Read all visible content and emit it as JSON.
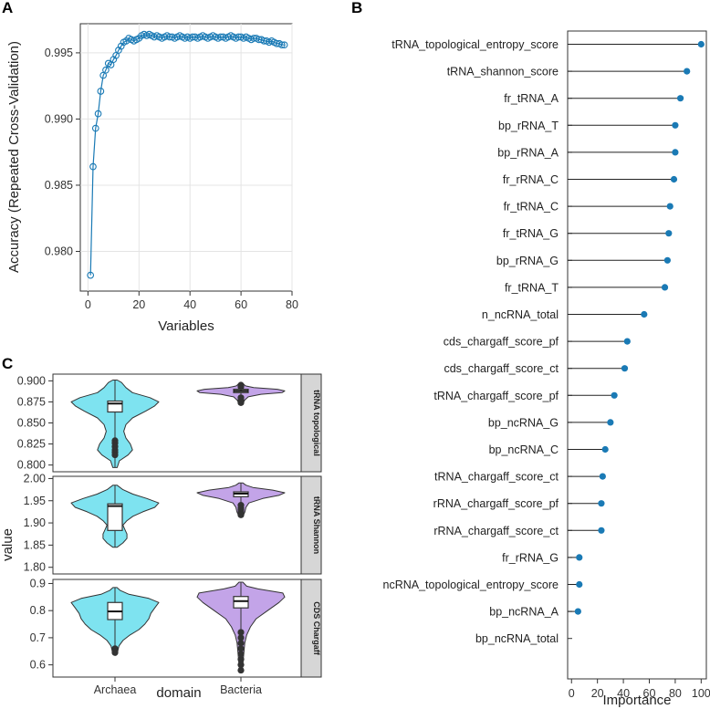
{
  "panels": {
    "a": "A",
    "b": "B",
    "c": "C"
  },
  "colors": {
    "line": "#1a7ab5",
    "archaea": "#7ee3f0",
    "bacteria": "#c3a4e8",
    "strip": "#d6d6d6",
    "grid": "#e4e4e4"
  },
  "chart_data": [
    {
      "type": "line",
      "xlabel": "Variables",
      "ylabel": "Accuracy (Repeated Cross-Validation)",
      "xlim": [
        -3,
        80
      ],
      "ylim": [
        0.977,
        0.9972
      ],
      "xticks": [
        0,
        20,
        40,
        60,
        80
      ],
      "yticks": [
        0.98,
        0.985,
        0.99,
        0.995
      ],
      "ytick_labels": [
        "0.980",
        "0.985",
        "0.990",
        "0.995"
      ],
      "x": [
        1,
        2,
        3,
        4,
        5,
        6,
        7,
        8,
        9,
        10,
        11,
        12,
        13,
        14,
        15,
        16,
        17,
        18,
        19,
        20,
        21,
        22,
        23,
        24,
        25,
        26,
        27,
        28,
        29,
        30,
        31,
        32,
        33,
        34,
        35,
        36,
        37,
        38,
        39,
        40,
        41,
        42,
        43,
        44,
        45,
        46,
        47,
        48,
        49,
        50,
        51,
        52,
        53,
        54,
        55,
        56,
        57,
        58,
        59,
        60,
        61,
        62,
        63,
        64,
        65,
        66,
        67,
        68,
        69,
        70,
        71,
        72,
        73,
        74,
        75,
        76,
        77
      ],
      "y": [
        0.9782,
        0.9864,
        0.9893,
        0.9904,
        0.9921,
        0.9933,
        0.9937,
        0.9942,
        0.9941,
        0.9945,
        0.9948,
        0.9952,
        0.9955,
        0.9958,
        0.9959,
        0.9961,
        0.996,
        0.9959,
        0.996,
        0.9961,
        0.9963,
        0.9964,
        0.9963,
        0.9964,
        0.9963,
        0.9962,
        0.9963,
        0.9962,
        0.9961,
        0.9962,
        0.9963,
        0.9962,
        0.9962,
        0.9961,
        0.9962,
        0.9963,
        0.9962,
        0.9961,
        0.9962,
        0.9961,
        0.9962,
        0.9962,
        0.9961,
        0.9962,
        0.9963,
        0.9962,
        0.9961,
        0.9962,
        0.9963,
        0.9962,
        0.9961,
        0.9962,
        0.9962,
        0.9961,
        0.9962,
        0.9963,
        0.9962,
        0.9961,
        0.9962,
        0.9962,
        0.9961,
        0.9962,
        0.9961,
        0.996,
        0.9961,
        0.9961,
        0.996,
        0.996,
        0.9959,
        0.9959,
        0.9958,
        0.9959,
        0.9958,
        0.9957,
        0.9957,
        0.9956,
        0.9956
      ]
    },
    {
      "type": "lollipop",
      "xlabel": "Importance",
      "xlim": [
        -3,
        104
      ],
      "xticks": [
        0,
        20,
        40,
        60,
        80,
        100
      ],
      "categories": [
        "tRNA_topological_entropy_score",
        "tRNA_shannon_score",
        "fr_tRNA_A",
        "bp_rRNA_T",
        "bp_rRNA_A",
        "fr_rRNA_C",
        "fr_tRNA_C",
        "fr_tRNA_G",
        "bp_rRNA_G",
        "fr_tRNA_T",
        "n_ncRNA_total",
        "cds_chargaff_score_pf",
        "cds_chargaff_score_ct",
        "tRNA_chargaff_score_pf",
        "bp_ncRNA_G",
        "bp_ncRNA_C",
        "tRNA_chargaff_score_ct",
        "rRNA_chargaff_score_pf",
        "rRNA_chargaff_score_ct",
        "fr_rRNA_G",
        "ncRNA_topological_entropy_score",
        "bp_ncRNA_A",
        "bp_ncRNA_total"
      ],
      "values": [
        100,
        89,
        84,
        80,
        80,
        79,
        76,
        75,
        74,
        72,
        56,
        43,
        41,
        33,
        30,
        26,
        24,
        23,
        23,
        6,
        6,
        5,
        0
      ]
    },
    {
      "type": "violin",
      "xlabel": "domain",
      "ylabel": "value",
      "categories": [
        "Archaea",
        "Bacteria"
      ],
      "facets": [
        {
          "label": "tRNA topological",
          "ylim": [
            0.792,
            0.908
          ],
          "yticks": [
            0.8,
            0.825,
            0.85,
            0.875,
            0.9
          ],
          "ytick_labels": [
            "0.800",
            "0.825",
            "0.850",
            "0.875",
            "0.900"
          ],
          "groups": [
            {
              "name": "Archaea",
              "min": 0.797,
              "max": 0.901,
              "q1": 0.863,
              "median": 0.873,
              "q3": 0.876,
              "outliers": [
                0.829,
                0.826,
                0.822,
                0.818,
                0.815,
                0.812
              ],
              "density": [
                [
                  0.797,
                  1
                ],
                [
                  0.805,
                  2
                ],
                [
                  0.812,
                  6
                ],
                [
                  0.818,
                  8
                ],
                [
                  0.825,
                  7
                ],
                [
                  0.832,
                  5
                ],
                [
                  0.84,
                  4
                ],
                [
                  0.848,
                  5
                ],
                [
                  0.856,
                  8
                ],
                [
                  0.864,
                  14
                ],
                [
                  0.87,
                  18
                ],
                [
                  0.875,
                  20
                ],
                [
                  0.88,
                  16
                ],
                [
                  0.886,
                  8
                ],
                [
                  0.892,
                  5
                ],
                [
                  0.898,
                  3
                ],
                [
                  0.901,
                  1
                ]
              ]
            },
            {
              "name": "Bacteria",
              "min": 0.872,
              "max": 0.897,
              "q1": 0.886,
              "median": 0.888,
              "q3": 0.89,
              "outliers": [
                0.874,
                0.877,
                0.88,
                0.893,
                0.895
              ],
              "density": [
                [
                  0.872,
                  2
                ],
                [
                  0.877,
                  4
                ],
                [
                  0.881,
                  8
                ],
                [
                  0.884,
                  22
                ],
                [
                  0.886,
                  45
                ],
                [
                  0.888,
                  48
                ],
                [
                  0.89,
                  40
                ],
                [
                  0.892,
                  14
                ],
                [
                  0.894,
                  5
                ],
                [
                  0.897,
                  2
                ]
              ]
            }
          ]
        },
        {
          "label": "tRNA Shannon",
          "ylim": [
            1.785,
            2.005
          ],
          "yticks": [
            1.8,
            1.85,
            1.9,
            1.95,
            2.0
          ],
          "ytick_labels": [
            "1.80",
            "1.85",
            "1.90",
            "1.95",
            "2.00"
          ],
          "groups": [
            {
              "name": "Archaea",
              "min": 1.845,
              "max": 1.985,
              "q1": 1.883,
              "median": 1.938,
              "q3": 1.943,
              "outliers": [],
              "density": [
                [
                  1.845,
                  1
                ],
                [
                  1.855,
                  4
                ],
                [
                  1.865,
                  6
                ],
                [
                  1.875,
                  6
                ],
                [
                  1.885,
                  5
                ],
                [
                  1.895,
                  4
                ],
                [
                  1.905,
                  6
                ],
                [
                  1.915,
                  9
                ],
                [
                  1.925,
                  14
                ],
                [
                  1.935,
                  20
                ],
                [
                  1.945,
                  22
                ],
                [
                  1.955,
                  16
                ],
                [
                  1.965,
                  9
                ],
                [
                  1.975,
                  4
                ],
                [
                  1.985,
                  1
                ]
              ]
            },
            {
              "name": "Bacteria",
              "min": 1.915,
              "max": 1.99,
              "q1": 1.959,
              "median": 1.966,
              "q3": 1.97,
              "outliers": [
                1.918,
                1.922,
                1.926,
                1.93,
                1.934,
                1.94
              ],
              "density": [
                [
                  1.915,
                  2
                ],
                [
                  1.925,
                  4
                ],
                [
                  1.935,
                  5
                ],
                [
                  1.945,
                  8
                ],
                [
                  1.955,
                  22
                ],
                [
                  1.962,
                  38
                ],
                [
                  1.968,
                  44
                ],
                [
                  1.974,
                  32
                ],
                [
                  1.98,
                  12
                ],
                [
                  1.985,
                  5
                ],
                [
                  1.99,
                  2
                ]
              ]
            }
          ]
        },
        {
          "label": "CDS Chargaff",
          "ylim": [
            0.555,
            0.915
          ],
          "yticks": [
            0.6,
            0.7,
            0.8,
            0.9
          ],
          "ytick_labels": [
            "0.6",
            "0.7",
            "0.8",
            "0.9"
          ],
          "groups": [
            {
              "name": "Archaea",
              "min": 0.64,
              "max": 0.885,
              "q1": 0.767,
              "median": 0.797,
              "q3": 0.83,
              "outliers": [
                0.66,
                0.655,
                0.65,
                0.645
              ],
              "density": [
                [
                  0.64,
                  2
                ],
                [
                  0.655,
                  3
                ],
                [
                  0.67,
                  4
                ],
                [
                  0.69,
                  8
                ],
                [
                  0.71,
                  15
                ],
                [
                  0.73,
                  24
                ],
                [
                  0.75,
                  30
                ],
                [
                  0.77,
                  34
                ],
                [
                  0.79,
                  36
                ],
                [
                  0.81,
                  40
                ],
                [
                  0.83,
                  44
                ],
                [
                  0.845,
                  34
                ],
                [
                  0.86,
                  14
                ],
                [
                  0.875,
                  5
                ],
                [
                  0.885,
                  2
                ]
              ]
            },
            {
              "name": "Bacteria",
              "min": 0.57,
              "max": 0.905,
              "q1": 0.81,
              "median": 0.835,
              "q3": 0.852,
              "outliers": [
                0.58,
                0.6,
                0.62,
                0.64,
                0.66,
                0.68,
                0.7,
                0.72
              ],
              "density": [
                [
                  0.57,
                  1
                ],
                [
                  0.6,
                  2
                ],
                [
                  0.64,
                  3
                ],
                [
                  0.68,
                  4
                ],
                [
                  0.71,
                  6
                ],
                [
                  0.74,
                  10
                ],
                [
                  0.77,
                  16
                ],
                [
                  0.8,
                  28
                ],
                [
                  0.83,
                  40
                ],
                [
                  0.85,
                  46
                ],
                [
                  0.865,
                  44
                ],
                [
                  0.88,
                  18
                ],
                [
                  0.89,
                  6
                ],
                [
                  0.905,
                  2
                ]
              ]
            }
          ]
        }
      ]
    }
  ]
}
